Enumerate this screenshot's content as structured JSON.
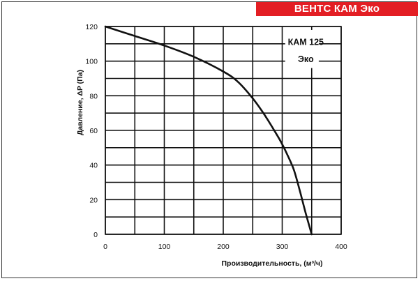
{
  "header": {
    "title": "ВЕНТС КАМ Эко",
    "color": "#e31e24"
  },
  "chart_data": {
    "type": "line",
    "xlabel": "Производительность, (м³/ч)",
    "ylabel": "Давление, ΔP (Па)",
    "xlim": [
      0,
      400
    ],
    "ylim": [
      0,
      120
    ],
    "x_ticks": [
      0,
      100,
      200,
      300,
      400
    ],
    "y_ticks": [
      0,
      20,
      40,
      60,
      80,
      100,
      120
    ],
    "grid": true,
    "series": [
      {
        "name": "КАМ 125 Эко",
        "line_color": "#111111",
        "x": [
          0,
          50,
          100,
          150,
          200,
          225,
          250,
          270,
          290,
          300,
          310,
          320,
          330,
          340,
          350
        ],
        "y": [
          120,
          114.5,
          109,
          102.5,
          94,
          88,
          78.5,
          69,
          58,
          52,
          45,
          37,
          25,
          12,
          0
        ]
      }
    ]
  }
}
